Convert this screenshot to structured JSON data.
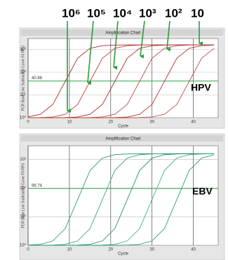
{
  "dilution_labels": [
    "10⁶",
    "10⁵",
    "10⁴",
    "10³",
    "10²",
    "10"
  ],
  "chart_data": [
    {
      "type": "line",
      "title": "Amplification Chart",
      "xlabel": "Cycle",
      "ylabel": "PCR Base Line Subtracted Curve Fit RFU",
      "annotation": "HPV",
      "threshold": 40.88,
      "log_y": true,
      "grid": true,
      "x": [
        0,
        3,
        6,
        9,
        12,
        15,
        18,
        21,
        24,
        27,
        30,
        33,
        36,
        39,
        42,
        45
      ],
      "xlim": [
        0,
        46
      ],
      "xticks": [
        0,
        10,
        20,
        30,
        40
      ],
      "ylim": [
        1,
        3000
      ],
      "yticks": [
        {
          "value": 1,
          "label": "10⁰"
        },
        {
          "value": 10,
          "label": "10¹"
        },
        {
          "value": 100,
          "label": "10²"
        },
        {
          "value": 1000,
          "label": "10³"
        }
      ],
      "series": [
        {
          "color": "#b02a2a",
          "values": [
            1.08,
            1.42,
            3.84,
            39.8,
            413,
            1117,
            1462,
            1556,
            1580,
            1580,
            1580,
            1580,
            1580,
            1580,
            1580,
            1580
          ]
        },
        {
          "color": "#b8403a",
          "values": [
            1,
            1.02,
            1.08,
            1.42,
            3.84,
            39.8,
            413,
            1117,
            1462,
            1556,
            1580,
            1580,
            1580,
            1580,
            1580,
            1580
          ]
        },
        {
          "color": "#a82e2e",
          "values": [
            1,
            1,
            1,
            1.02,
            1.08,
            1.42,
            3.84,
            39.8,
            413,
            1117,
            1462,
            1556,
            1580,
            1580,
            1580,
            1580
          ]
        },
        {
          "color": "#c04a44",
          "values": [
            1,
            1,
            1,
            1,
            1,
            1.02,
            1.08,
            1.42,
            3.84,
            39.8,
            413,
            1117,
            1462,
            1556,
            1580,
            1580
          ]
        },
        {
          "color": "#b23434",
          "values": [
            1,
            1,
            1,
            1,
            1,
            1,
            1,
            1.02,
            1.08,
            1.42,
            3.84,
            39.8,
            413,
            1117,
            1462,
            1556
          ]
        },
        {
          "color": "#c05048",
          "values": [
            1,
            1,
            1,
            1,
            1,
            1,
            1,
            1,
            1,
            1.02,
            1.08,
            1.42,
            3.84,
            39.8,
            413,
            1117
          ]
        }
      ]
    },
    {
      "type": "line",
      "title": "Amplification Chart",
      "xlabel": "Cycle",
      "ylabel": "PCR Base Line Subtracted Curve Fit RFU",
      "annotation": "EBV",
      "threshold": 96.74,
      "log_y": true,
      "grid": true,
      "x": [
        0,
        3,
        6,
        9,
        12,
        15,
        18,
        21,
        24,
        27,
        30,
        33,
        36,
        39,
        42,
        45
      ],
      "xlim": [
        0,
        46
      ],
      "xticks": [
        0,
        10,
        20,
        30,
        40
      ],
      "ylim": [
        1,
        3000
      ],
      "yticks": [
        {
          "value": 1,
          "label": "10⁰"
        },
        {
          "value": 10,
          "label": "10¹"
        },
        {
          "value": 100,
          "label": "10²"
        },
        {
          "value": 1000,
          "label": "10³"
        }
      ],
      "series": [
        {
          "color": "#2e9e6a",
          "values": [
            1.02,
            1.08,
            1.42,
            3.84,
            39.8,
            413,
            1117,
            1462,
            1556,
            1580,
            1580,
            1580,
            1580,
            1580,
            1580,
            1580
          ]
        },
        {
          "color": "#3aa878",
          "values": [
            1,
            1,
            1.02,
            1.08,
            1.42,
            3.84,
            39.8,
            413,
            1117,
            1462,
            1556,
            1580,
            1580,
            1580,
            1580,
            1580
          ]
        },
        {
          "color": "#289060",
          "values": [
            1,
            1,
            1,
            1,
            1.02,
            1.08,
            1.42,
            3.84,
            39.8,
            413,
            1117,
            1462,
            1556,
            1580,
            1580,
            1580
          ]
        },
        {
          "color": "#44b084",
          "values": [
            1,
            1,
            1,
            1,
            1,
            1,
            1.02,
            1.08,
            1.42,
            3.84,
            39.8,
            413,
            1117,
            1462,
            1556,
            1580
          ]
        },
        {
          "color": "#2f9a70",
          "values": [
            1,
            1,
            1,
            1,
            1,
            1,
            1,
            1,
            1.02,
            1.08,
            1.42,
            3.84,
            39.8,
            413,
            1117,
            1462
          ]
        }
      ]
    }
  ]
}
